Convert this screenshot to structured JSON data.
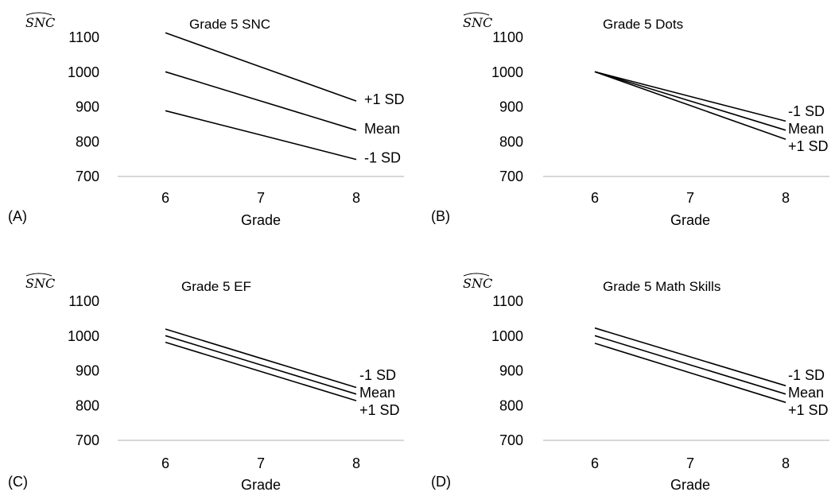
{
  "chart_data": [
    {
      "type": "line",
      "panel_label": "(A)",
      "title": "Grade 5 SNC",
      "ylabel": "SNC",
      "xlabel": "Grade",
      "x": [
        6,
        7,
        8
      ],
      "xticks": [
        "6",
        "7",
        "8"
      ],
      "yticks": [
        "1100",
        "1000",
        "900",
        "800",
        "700"
      ],
      "ylim": [
        700,
        1100
      ],
      "grid": false,
      "series": [
        {
          "name": "+1 SD",
          "values": [
            1113,
            1015,
            917
          ]
        },
        {
          "name": "Mean",
          "values": [
            1001,
            917,
            833
          ]
        },
        {
          "name": "-1 SD",
          "values": [
            889,
            819,
            749
          ]
        }
      ]
    },
    {
      "type": "line",
      "panel_label": "(B)",
      "title": "Grade 5 Dots",
      "ylabel": "SNC",
      "xlabel": "Grade",
      "x": [
        6,
        7,
        8
      ],
      "xticks": [
        "6",
        "7",
        "8"
      ],
      "yticks": [
        "1100",
        "1000",
        "900",
        "800",
        "700"
      ],
      "ylim": [
        700,
        1100
      ],
      "grid": false,
      "series": [
        {
          "name": "-1 SD",
          "values": [
            1001,
            930,
            859
          ]
        },
        {
          "name": "Mean",
          "values": [
            1001,
            917,
            833
          ]
        },
        {
          "name": "+1 SD",
          "values": [
            1001,
            904,
            807
          ]
        }
      ]
    },
    {
      "type": "line",
      "panel_label": "(C)",
      "title": "Grade 5 EF",
      "ylabel": "SNC",
      "xlabel": "Grade",
      "x": [
        6,
        7,
        8
      ],
      "xticks": [
        "6",
        "7",
        "8"
      ],
      "yticks": [
        "1100",
        "1000",
        "900",
        "800",
        "700"
      ],
      "ylim": [
        700,
        1100
      ],
      "grid": false,
      "series": [
        {
          "name": "-1 SD",
          "values": [
            1020,
            936,
            852
          ]
        },
        {
          "name": "Mean",
          "values": [
            1001,
            917,
            833
          ]
        },
        {
          "name": "+1 SD",
          "values": [
            982,
            898,
            814
          ]
        }
      ]
    },
    {
      "type": "line",
      "panel_label": "(D)",
      "title": "Grade 5 Math Skills",
      "ylabel": "SNC",
      "xlabel": "Grade",
      "x": [
        6,
        7,
        8
      ],
      "xticks": [
        "6",
        "7",
        "8"
      ],
      "yticks": [
        "1100",
        "1000",
        "900",
        "800",
        "700"
      ],
      "ylim": [
        700,
        1100
      ],
      "grid": false,
      "series": [
        {
          "name": "-1 SD",
          "values": [
            1023,
            940,
            857
          ]
        },
        {
          "name": "Mean",
          "values": [
            1001,
            917,
            833
          ]
        },
        {
          "name": "+1 SD",
          "values": [
            979,
            894,
            809
          ]
        }
      ]
    }
  ]
}
